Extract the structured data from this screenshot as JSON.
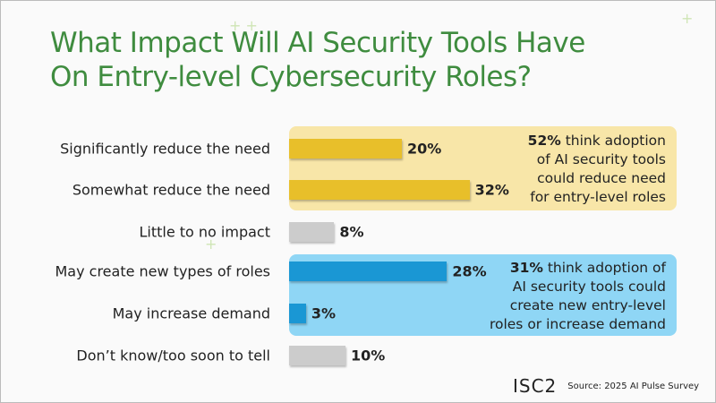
{
  "chart_data": {
    "type": "bar",
    "orientation": "horizontal",
    "title": "What Impact Will AI Security Tools Have On Entry-level Cybersecurity Roles?",
    "categories": [
      "Significantly reduce the need",
      "Somewhat reduce the need",
      "Little to no impact",
      "May create new types of roles",
      "May increase demand",
      "Don’t know/too soon to tell"
    ],
    "values": [
      20,
      32,
      8,
      28,
      3,
      10
    ],
    "value_labels": [
      "20%",
      "32%",
      "8%",
      "28%",
      "3%",
      "10%"
    ],
    "colors": [
      "#e8bf2a",
      "#e8bf2a",
      "#cccccc",
      "#1a97d4",
      "#1a97d4",
      "#cccccc"
    ],
    "xlim": [
      0,
      65
    ],
    "annotations": [
      {
        "bold": "52%",
        "text": " think adoption",
        "lines": [
          "of AI security tools",
          "could reduce need",
          "for entry-level roles"
        ],
        "color": "#f8e6a8"
      },
      {
        "bold": "31%",
        "text": " think adoption of",
        "lines": [
          "AI security tools could",
          "create new entry-level",
          "roles or increase demand"
        ],
        "color": "#8fd6f5"
      }
    ]
  },
  "title_lines": [
    "What Impact Will AI Security Tools Have",
    "On Entry-level Cybersecurity Roles?"
  ],
  "footer": {
    "logo": "ISC2",
    "source": "Source: 2025 AI Pulse Survey"
  }
}
